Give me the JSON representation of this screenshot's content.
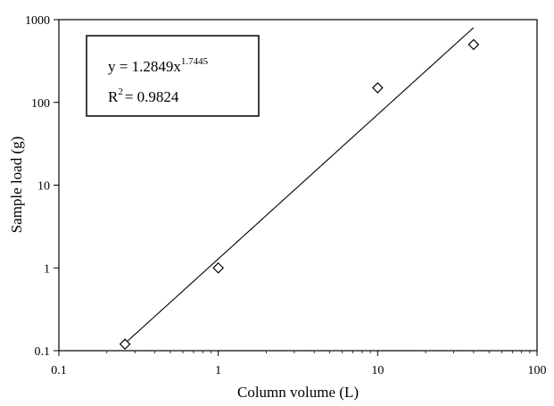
{
  "chart_data": {
    "type": "scatter",
    "xlabel": "Column volume (L)",
    "ylabel": "Sample load (g)",
    "xscale": "log",
    "yscale": "log",
    "xlim": [
      0.1,
      100
    ],
    "ylim": [
      0.1,
      1000
    ],
    "x_tick_labels": [
      "0.1",
      "1",
      "10",
      "100"
    ],
    "y_tick_labels": [
      "0.1",
      "1",
      "10",
      "100",
      "1000"
    ],
    "grid": false,
    "series": [
      {
        "marker": "diamond",
        "points": [
          {
            "x": 0.26,
            "y": 0.12
          },
          {
            "x": 1,
            "y": 1
          },
          {
            "x": 10,
            "y": 150
          },
          {
            "x": 40,
            "y": 500
          }
        ]
      }
    ],
    "trendline": {
      "type": "power",
      "coefficient": 1.2849,
      "exponent": 1.7445,
      "x_range": [
        0.26,
        40
      ]
    },
    "annotation": {
      "equation_prefix": "y = 1.2849x",
      "equation_exponent": "1.7445",
      "r2_prefix": "R",
      "r2_superscript": "2",
      "r2_suffix": "= 0.9824"
    }
  }
}
